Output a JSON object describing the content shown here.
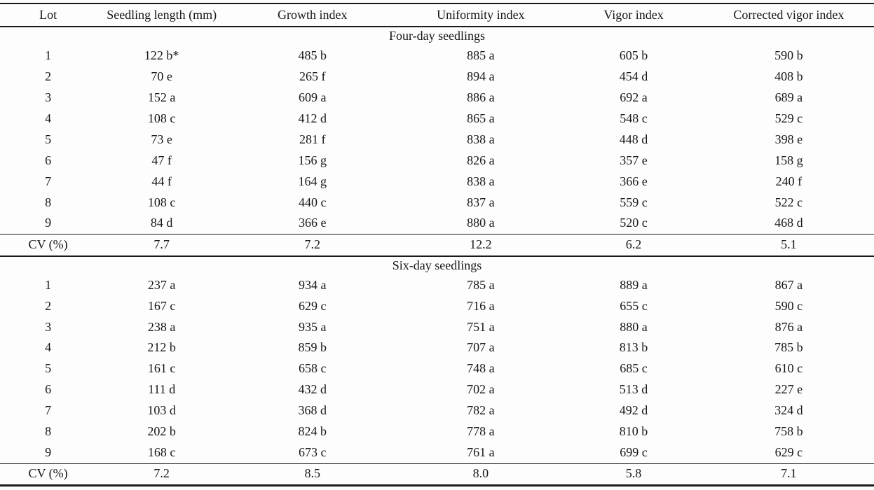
{
  "table": {
    "columns": [
      "Lot",
      "Seedling length (mm)",
      "Growth index",
      "Uniformity index",
      "Vigor index",
      "Corrected vigor index"
    ],
    "footnote_marker": "*",
    "sections": [
      {
        "title": "Four-day seedlings",
        "rows": [
          [
            "1",
            "122 b*",
            "485 b",
            "885 a",
            "605 b",
            "590 b"
          ],
          [
            "2",
            "70 e",
            "265 f",
            "894 a",
            "454 d",
            "408 b"
          ],
          [
            "3",
            "152 a",
            "609 a",
            "886 a",
            "692 a",
            "689 a"
          ],
          [
            "4",
            "108 c",
            "412 d",
            "865 a",
            "548 c",
            "529 c"
          ],
          [
            "5",
            "73 e",
            "281 f",
            "838 a",
            "448 d",
            "398 e"
          ],
          [
            "6",
            "47 f",
            "156 g",
            "826 a",
            "357 e",
            "158 g"
          ],
          [
            "7",
            "44 f",
            "164 g",
            "838 a",
            "366 e",
            "240 f"
          ],
          [
            "8",
            "108 c",
            "440 c",
            "837 a",
            "559 c",
            "522 c"
          ],
          [
            "9",
            "84 d",
            "366 e",
            "880 a",
            "520 c",
            "468 d"
          ]
        ],
        "cv_row": [
          "CV (%)",
          "7.7",
          "7.2",
          "12.2",
          "6.2",
          "5.1"
        ]
      },
      {
        "title": "Six-day seedlings",
        "rows": [
          [
            "1",
            "237 a",
            "934 a",
            "785 a",
            "889 a",
            "867 a"
          ],
          [
            "2",
            "167 c",
            "629 c",
            "716 a",
            "655 c",
            "590 c"
          ],
          [
            "3",
            "238 a",
            "935 a",
            "751 a",
            "880 a",
            "876 a"
          ],
          [
            "4",
            "212 b",
            "859 b",
            "707 a",
            "813 b",
            "785 b"
          ],
          [
            "5",
            "161 c",
            "658 c",
            "748 a",
            "685 c",
            "610 c"
          ],
          [
            "6",
            "111 d",
            "432 d",
            "702 a",
            "513 d",
            "227 e"
          ],
          [
            "7",
            "103 d",
            "368 d",
            "782 a",
            "492 d",
            "324 d"
          ],
          [
            "8",
            "202 b",
            "824 b",
            "778 a",
            "810 b",
            "758 b"
          ],
          [
            "9",
            "168 c",
            "673 c",
            "761 a",
            "699 c",
            "629 c"
          ]
        ],
        "cv_row": [
          "CV (%)",
          "7.2",
          "8.5",
          "8.0",
          "5.8",
          "7.1"
        ]
      }
    ]
  }
}
